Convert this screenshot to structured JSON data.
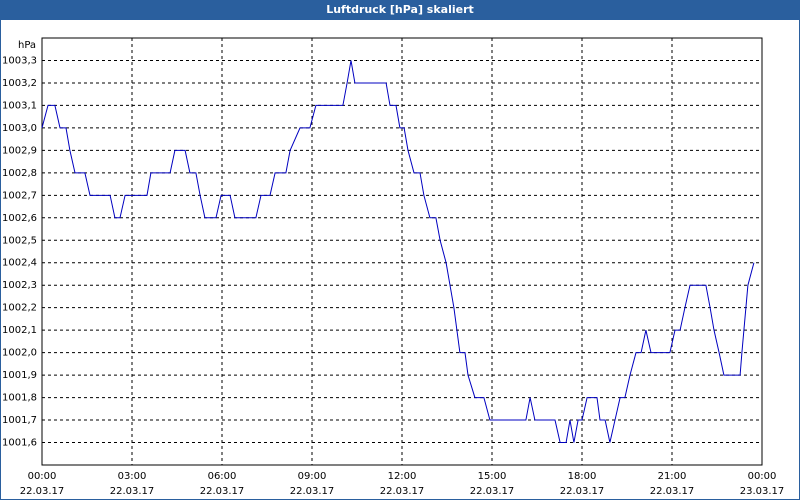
{
  "chart_data": {
    "type": "line",
    "title": "Luftdruck [hPa] skaliert",
    "y_unit": "hPa",
    "color": "#0000c0",
    "grid": true,
    "x": [
      0,
      0.2,
      0.43,
      0.6,
      0.8,
      0.93,
      1.1,
      1.43,
      1.6,
      2.27,
      2.43,
      2.6,
      2.77,
      3.5,
      3.63,
      4.27,
      4.43,
      4.77,
      4.93,
      5.13,
      5.27,
      5.43,
      5.8,
      5.97,
      6.27,
      6.43,
      7.13,
      7.3,
      7.6,
      7.77,
      8.13,
      8.27,
      8.6,
      8.93,
      9.13,
      10.03,
      10.17,
      10.3,
      10.43,
      11.47,
      11.6,
      11.8,
      11.93,
      12.07,
      12.2,
      12.4,
      12.6,
      12.73,
      12.93,
      13.13,
      13.27,
      13.47,
      13.6,
      13.73,
      13.83,
      13.93,
      14.1,
      14.2,
      14.43,
      14.73,
      14.93,
      16.13,
      16.27,
      16.43,
      17.1,
      17.27,
      17.47,
      17.6,
      17.73,
      17.87,
      18,
      18.17,
      18.5,
      18.6,
      18.77,
      18.93,
      19.1,
      19.27,
      19.43,
      19.6,
      19.8,
      19.97,
      20.13,
      20.3,
      20.93,
      21.1,
      21.27,
      21.43,
      21.6,
      22.13,
      22.27,
      22.4,
      22.57,
      22.73,
      23.27,
      23.33,
      23.53,
      23.73
    ],
    "values": [
      1003.0,
      1003.1,
      1003.1,
      1003.0,
      1003.0,
      1002.9,
      1002.8,
      1002.8,
      1002.7,
      1002.7,
      1002.6,
      1002.6,
      1002.7,
      1002.7,
      1002.8,
      1002.8,
      1002.9,
      1002.9,
      1002.8,
      1002.8,
      1002.7,
      1002.6,
      1002.6,
      1002.7,
      1002.7,
      1002.6,
      1002.6,
      1002.7,
      1002.7,
      1002.8,
      1002.8,
      1002.9,
      1003.0,
      1003.0,
      1003.1,
      1003.1,
      1003.2,
      1003.3,
      1003.2,
      1003.2,
      1003.1,
      1003.1,
      1003.0,
      1003.0,
      1002.9,
      1002.8,
      1002.8,
      1002.7,
      1002.6,
      1002.6,
      1002.5,
      1002.4,
      1002.3,
      1002.2,
      1002.1,
      1002.0,
      1002.0,
      1001.9,
      1001.8,
      1001.8,
      1001.7,
      1001.7,
      1001.8,
      1001.7,
      1001.7,
      1001.6,
      1001.6,
      1001.7,
      1001.6,
      1001.7,
      1001.7,
      1001.8,
      1001.8,
      1001.7,
      1001.7,
      1001.6,
      1001.7,
      1001.8,
      1001.8,
      1001.9,
      1002.0,
      1002.0,
      1002.1,
      1002.0,
      1002.0,
      1002.1,
      1002.1,
      1002.2,
      1002.3,
      1002.3,
      1002.2,
      1002.1,
      1002.0,
      1001.9,
      1001.9,
      1002.0,
      1002.3,
      1002.4
    ],
    "xlim": [
      0,
      24
    ],
    "xticks": [
      {
        "value": 0,
        "label": "00:00"
      },
      {
        "value": 3,
        "label": "03:00"
      },
      {
        "value": 6,
        "label": "06:00"
      },
      {
        "value": 9,
        "label": "09:00"
      },
      {
        "value": 12,
        "label": "12:00"
      },
      {
        "value": 15,
        "label": "15:00"
      },
      {
        "value": 18,
        "label": "18:00"
      },
      {
        "value": 21,
        "label": "21:00"
      },
      {
        "value": 24,
        "label": "00:00"
      }
    ],
    "xtick_dates": [
      "22.03.17",
      "22.03.17",
      "22.03.17",
      "22.03.17",
      "22.03.17",
      "22.03.17",
      "22.03.17",
      "22.03.17",
      "23.03.17"
    ],
    "ylim": [
      1001.5,
      1003.4
    ],
    "yticks": [
      {
        "value": 1001.6,
        "label": "1001,6"
      },
      {
        "value": 1001.7,
        "label": "1001,7"
      },
      {
        "value": 1001.8,
        "label": "1001,8"
      },
      {
        "value": 1001.9,
        "label": "1001,9"
      },
      {
        "value": 1002.0,
        "label": "1002,0"
      },
      {
        "value": 1002.1,
        "label": "1002,1"
      },
      {
        "value": 1002.2,
        "label": "1002,2"
      },
      {
        "value": 1002.3,
        "label": "1002,3"
      },
      {
        "value": 1002.4,
        "label": "1002,4"
      },
      {
        "value": 1002.5,
        "label": "1002,5"
      },
      {
        "value": 1002.6,
        "label": "1002,6"
      },
      {
        "value": 1002.7,
        "label": "1002,7"
      },
      {
        "value": 1002.8,
        "label": "1002,8"
      },
      {
        "value": 1002.9,
        "label": "1002,9"
      },
      {
        "value": 1003.0,
        "label": "1003,0"
      },
      {
        "value": 1003.1,
        "label": "1003,1"
      },
      {
        "value": 1003.2,
        "label": "1003,2"
      },
      {
        "value": 1003.3,
        "label": "1003,3"
      }
    ]
  }
}
